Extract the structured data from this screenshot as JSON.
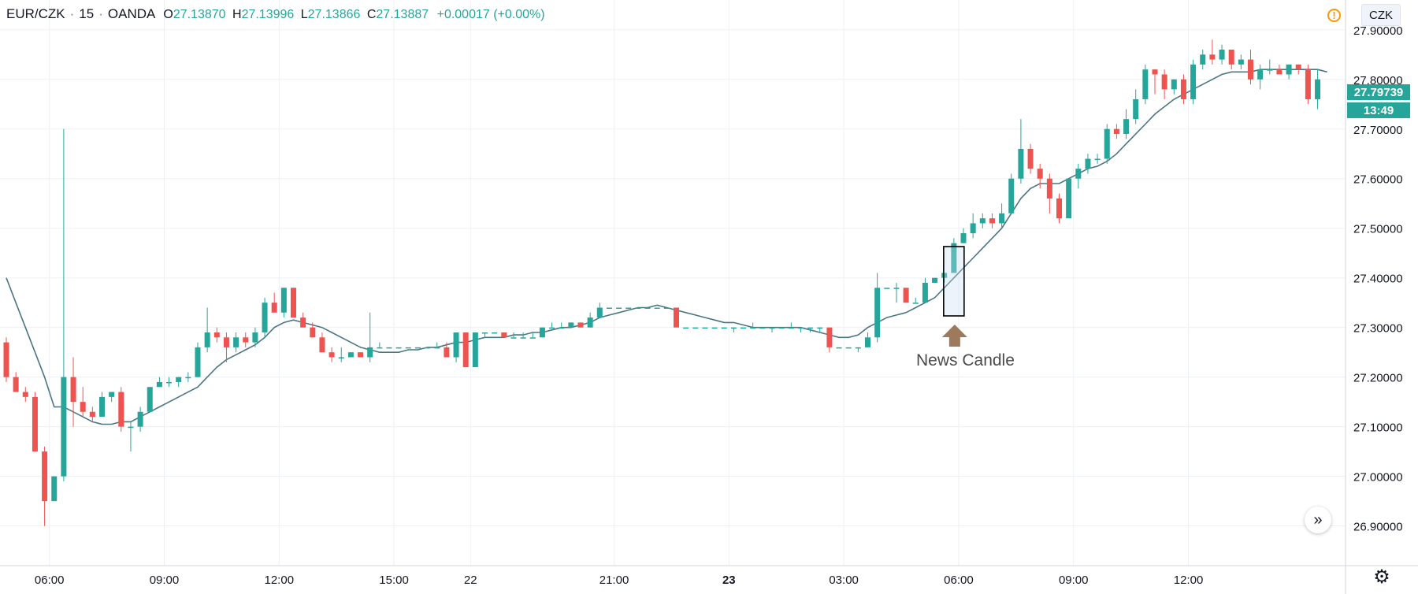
{
  "header": {
    "symbol": "EUR/CZK",
    "interval": "15",
    "source": "OANDA",
    "open_label": "O",
    "open": "27.13870",
    "high_label": "H",
    "high": "27.13996",
    "low_label": "L",
    "low": "27.13866",
    "close_label": "C",
    "close": "27.13887",
    "change": "+0.00017 (+0.00%)"
  },
  "currency_badge": "CZK",
  "last_price": "27.79739",
  "countdown": "13:49",
  "annotation": {
    "label": "News Candle"
  },
  "icons": {
    "warning": "warning-icon",
    "scroll": "double-chevron-right-icon",
    "settings": "gear-icon",
    "arrow": "arrow-up-icon"
  },
  "colors": {
    "up": "#26a69a",
    "down": "#ef5350",
    "ma": "#4a7683",
    "arrow": "#9c7a5b",
    "grid": "#edf0f3"
  },
  "chart_data": {
    "type": "candlestick",
    "ylim": [
      26.82,
      27.96
    ],
    "y_ticks": [
      26.9,
      27.0,
      27.1,
      27.2,
      27.3,
      27.4,
      27.5,
      27.6,
      27.7,
      27.8,
      27.9
    ],
    "y_tick_labels": [
      "26.90000",
      "27.00000",
      "27.10000",
      "27.20000",
      "27.30000",
      "27.40000",
      "27.50000",
      "27.60000",
      "27.70000",
      "27.80000",
      "27.90000"
    ],
    "x_ticks": [
      {
        "index": 4.5,
        "label": "06:00"
      },
      {
        "index": 16.5,
        "label": "09:00"
      },
      {
        "index": 28.5,
        "label": "12:00"
      },
      {
        "index": 40.5,
        "label": "15:00"
      },
      {
        "index": 48.5,
        "label": "22"
      },
      {
        "index": 63.5,
        "label": "21:00"
      },
      {
        "index": 75.5,
        "label": "23",
        "bold": true
      },
      {
        "index": 87.5,
        "label": "03:00"
      },
      {
        "index": 99.5,
        "label": "06:00"
      },
      {
        "index": 111.5,
        "label": "09:00"
      },
      {
        "index": 123.5,
        "label": "12:00"
      }
    ],
    "candles": [
      [
        27.27,
        27.28,
        27.19,
        27.2
      ],
      [
        27.2,
        27.21,
        27.17,
        27.17
      ],
      [
        27.17,
        27.18,
        27.15,
        27.16
      ],
      [
        27.16,
        27.17,
        27.05,
        27.05
      ],
      [
        27.05,
        27.06,
        26.9,
        26.95
      ],
      [
        26.95,
        27.0,
        26.95,
        27.0
      ],
      [
        27.0,
        27.7,
        26.99,
        27.2
      ],
      [
        27.2,
        27.24,
        27.1,
        27.15
      ],
      [
        27.15,
        27.18,
        27.12,
        27.13
      ],
      [
        27.13,
        27.14,
        27.11,
        27.12
      ],
      [
        27.12,
        27.17,
        27.12,
        27.16
      ],
      [
        27.16,
        27.17,
        27.15,
        27.17
      ],
      [
        27.17,
        27.18,
        27.09,
        27.1
      ],
      [
        27.1,
        27.11,
        27.05,
        27.1
      ],
      [
        27.1,
        27.14,
        27.09,
        27.13
      ],
      [
        27.13,
        27.18,
        27.13,
        27.18
      ],
      [
        27.18,
        27.2,
        27.18,
        27.19
      ],
      [
        27.19,
        27.2,
        27.18,
        27.19
      ],
      [
        27.19,
        27.2,
        27.18,
        27.2
      ],
      [
        27.2,
        27.21,
        27.19,
        27.2
      ],
      [
        27.2,
        27.27,
        27.2,
        27.26
      ],
      [
        27.26,
        27.34,
        27.25,
        27.29
      ],
      [
        27.29,
        27.3,
        27.27,
        27.28
      ],
      [
        27.28,
        27.29,
        27.23,
        27.26
      ],
      [
        27.26,
        27.29,
        27.25,
        27.28
      ],
      [
        27.28,
        27.29,
        27.26,
        27.27
      ],
      [
        27.27,
        27.3,
        27.26,
        27.29
      ],
      [
        27.29,
        27.36,
        27.28,
        27.35
      ],
      [
        27.35,
        27.37,
        27.34,
        27.33
      ],
      [
        27.33,
        27.38,
        27.32,
        27.38
      ],
      [
        27.38,
        27.38,
        27.33,
        27.32
      ],
      [
        27.32,
        27.33,
        27.3,
        27.3
      ],
      [
        27.3,
        27.31,
        27.28,
        27.28
      ],
      [
        27.28,
        27.29,
        27.25,
        27.25
      ],
      [
        27.25,
        27.26,
        27.23,
        27.24
      ],
      [
        27.24,
        27.26,
        27.23,
        27.24
      ],
      [
        27.24,
        27.25,
        27.24,
        27.25
      ],
      [
        27.25,
        27.25,
        27.24,
        27.24
      ],
      [
        27.24,
        27.33,
        27.23,
        27.26
      ],
      [
        27.26,
        27.27,
        27.26,
        27.26
      ],
      [
        27.26,
        27.26,
        27.26,
        27.26
      ],
      [
        27.26,
        27.26,
        27.26,
        27.26
      ],
      [
        27.26,
        27.26,
        27.26,
        27.26
      ],
      [
        27.26,
        27.26,
        27.26,
        27.26
      ],
      [
        27.26,
        27.26,
        27.26,
        27.26
      ],
      [
        27.26,
        27.27,
        27.26,
        27.26
      ],
      [
        27.26,
        27.27,
        27.24,
        27.24
      ],
      [
        27.24,
        27.29,
        27.23,
        27.29
      ],
      [
        27.29,
        27.29,
        27.22,
        27.22
      ],
      [
        27.22,
        27.29,
        27.22,
        27.29
      ],
      [
        27.29,
        27.29,
        27.28,
        27.29
      ],
      [
        27.29,
        27.29,
        27.29,
        27.29
      ],
      [
        27.29,
        27.29,
        27.28,
        27.28
      ],
      [
        27.28,
        27.29,
        27.28,
        27.28
      ],
      [
        27.28,
        27.29,
        27.28,
        27.28
      ],
      [
        27.28,
        27.29,
        27.28,
        27.28
      ],
      [
        27.28,
        27.3,
        27.28,
        27.3
      ],
      [
        27.3,
        27.31,
        27.3,
        27.3
      ],
      [
        27.3,
        27.31,
        27.3,
        27.3
      ],
      [
        27.3,
        27.31,
        27.3,
        27.31
      ],
      [
        27.31,
        27.31,
        27.3,
        27.3
      ],
      [
        27.3,
        27.33,
        27.3,
        27.32
      ],
      [
        27.32,
        27.35,
        27.32,
        27.34
      ],
      [
        27.34,
        27.34,
        27.34,
        27.34
      ],
      [
        27.34,
        27.34,
        27.34,
        27.34
      ],
      [
        27.34,
        27.34,
        27.34,
        27.34
      ],
      [
        27.34,
        27.34,
        27.34,
        27.34
      ],
      [
        27.34,
        27.34,
        27.34,
        27.34
      ],
      [
        27.34,
        27.34,
        27.34,
        27.34
      ],
      [
        27.34,
        27.34,
        27.34,
        27.34
      ],
      [
        27.34,
        27.34,
        27.3,
        27.3
      ],
      [
        27.3,
        27.3,
        27.3,
        27.3
      ],
      [
        27.3,
        27.3,
        27.3,
        27.3
      ],
      [
        27.3,
        27.3,
        27.3,
        27.3
      ],
      [
        27.3,
        27.3,
        27.3,
        27.3
      ],
      [
        27.3,
        27.3,
        27.3,
        27.3
      ],
      [
        27.3,
        27.3,
        27.29,
        27.3
      ],
      [
        27.3,
        27.3,
        27.3,
        27.3
      ],
      [
        27.3,
        27.31,
        27.3,
        27.3
      ],
      [
        27.3,
        27.3,
        27.3,
        27.3
      ],
      [
        27.3,
        27.3,
        27.29,
        27.3
      ],
      [
        27.3,
        27.3,
        27.3,
        27.3
      ],
      [
        27.3,
        27.31,
        27.3,
        27.3
      ],
      [
        27.3,
        27.3,
        27.29,
        27.3
      ],
      [
        27.3,
        27.3,
        27.29,
        27.3
      ],
      [
        27.3,
        27.3,
        27.29,
        27.3
      ],
      [
        27.3,
        27.3,
        27.25,
        27.26
      ],
      [
        27.26,
        27.26,
        27.26,
        27.26
      ],
      [
        27.26,
        27.26,
        27.26,
        27.26
      ],
      [
        27.26,
        27.26,
        27.25,
        27.26
      ],
      [
        27.26,
        27.29,
        27.26,
        27.28
      ],
      [
        27.28,
        27.41,
        27.27,
        27.38
      ],
      [
        27.38,
        27.38,
        27.38,
        27.38
      ],
      [
        27.38,
        27.39,
        27.35,
        27.38
      ],
      [
        27.38,
        27.38,
        27.35,
        27.35
      ],
      [
        27.35,
        27.36,
        27.35,
        27.35
      ],
      [
        27.35,
        27.4,
        27.35,
        27.39
      ],
      [
        27.39,
        27.4,
        27.39,
        27.4
      ],
      [
        27.4,
        27.41,
        27.39,
        27.41
      ],
      [
        27.41,
        27.48,
        27.41,
        27.47
      ],
      [
        27.47,
        27.5,
        27.47,
        27.49
      ],
      [
        27.49,
        27.53,
        27.48,
        27.51
      ],
      [
        27.51,
        27.53,
        27.5,
        27.52
      ],
      [
        27.52,
        27.53,
        27.5,
        27.51
      ],
      [
        27.51,
        27.55,
        27.5,
        27.53
      ],
      [
        27.53,
        27.61,
        27.53,
        27.6
      ],
      [
        27.6,
        27.72,
        27.59,
        27.66
      ],
      [
        27.66,
        27.67,
        27.61,
        27.62
      ],
      [
        27.62,
        27.63,
        27.58,
        27.6
      ],
      [
        27.6,
        27.61,
        27.53,
        27.56
      ],
      [
        27.56,
        27.57,
        27.51,
        27.52
      ],
      [
        27.52,
        27.6,
        27.52,
        27.6
      ],
      [
        27.6,
        27.63,
        27.58,
        27.62
      ],
      [
        27.62,
        27.65,
        27.61,
        27.64
      ],
      [
        27.64,
        27.65,
        27.63,
        27.64
      ],
      [
        27.64,
        27.71,
        27.63,
        27.7
      ],
      [
        27.7,
        27.71,
        27.68,
        27.69
      ],
      [
        27.69,
        27.74,
        27.68,
        27.72
      ],
      [
        27.72,
        27.78,
        27.71,
        27.76
      ],
      [
        27.76,
        27.83,
        27.75,
        27.82
      ],
      [
        27.82,
        27.82,
        27.77,
        27.81
      ],
      [
        27.81,
        27.82,
        27.76,
        27.78
      ],
      [
        27.78,
        27.8,
        27.77,
        27.8
      ],
      [
        27.8,
        27.81,
        27.75,
        27.76
      ],
      [
        27.76,
        27.84,
        27.75,
        27.83
      ],
      [
        27.83,
        27.86,
        27.82,
        27.85
      ],
      [
        27.85,
        27.88,
        27.83,
        27.84
      ],
      [
        27.84,
        27.87,
        27.83,
        27.86
      ],
      [
        27.86,
        27.86,
        27.82,
        27.83
      ],
      [
        27.83,
        27.85,
        27.82,
        27.84
      ],
      [
        27.84,
        27.86,
        27.79,
        27.8
      ],
      [
        27.8,
        27.83,
        27.78,
        27.82
      ],
      [
        27.82,
        27.84,
        27.81,
        27.82
      ],
      [
        27.82,
        27.83,
        27.81,
        27.81
      ],
      [
        27.81,
        27.83,
        27.8,
        27.83
      ],
      [
        27.83,
        27.83,
        27.81,
        27.82
      ],
      [
        27.82,
        27.83,
        27.75,
        27.76
      ],
      [
        27.76,
        27.82,
        27.74,
        27.8
      ]
    ],
    "moving_average": [
      27.4,
      27.35,
      27.3,
      27.25,
      27.2,
      27.14,
      27.14,
      27.13,
      27.12,
      27.11,
      27.105,
      27.105,
      27.11,
      27.11,
      27.12,
      27.13,
      27.14,
      27.15,
      27.16,
      27.17,
      27.18,
      27.2,
      27.22,
      27.235,
      27.245,
      27.255,
      27.265,
      27.28,
      27.3,
      27.31,
      27.315,
      27.31,
      27.305,
      27.3,
      27.29,
      27.28,
      27.27,
      27.26,
      27.255,
      27.25,
      27.25,
      27.25,
      27.255,
      27.255,
      27.26,
      27.26,
      27.265,
      27.27,
      27.27,
      27.275,
      27.28,
      27.28,
      27.28,
      27.285,
      27.285,
      27.29,
      27.29,
      27.295,
      27.3,
      27.3,
      27.305,
      27.31,
      27.32,
      27.325,
      27.33,
      27.335,
      27.34,
      27.34,
      27.345,
      27.34,
      27.335,
      27.33,
      27.325,
      27.32,
      27.315,
      27.31,
      27.31,
      27.305,
      27.3,
      27.3,
      27.3,
      27.3,
      27.3,
      27.3,
      27.295,
      27.29,
      27.285,
      27.28,
      27.28,
      27.285,
      27.3,
      27.31,
      27.32,
      27.325,
      27.33,
      27.34,
      27.35,
      27.36,
      27.38,
      27.4,
      27.42,
      27.44,
      27.46,
      27.48,
      27.5,
      27.53,
      27.56,
      27.58,
      27.59,
      27.59,
      27.59,
      27.6,
      27.61,
      27.62,
      27.625,
      27.635,
      27.65,
      27.67,
      27.69,
      27.71,
      27.73,
      27.745,
      27.76,
      27.77,
      27.78,
      27.79,
      27.8,
      27.81,
      27.815,
      27.815,
      27.815,
      27.82,
      27.82,
      27.82,
      27.82,
      27.82,
      27.82,
      27.82,
      27.815
    ],
    "highlight_candle_index": 99
  }
}
